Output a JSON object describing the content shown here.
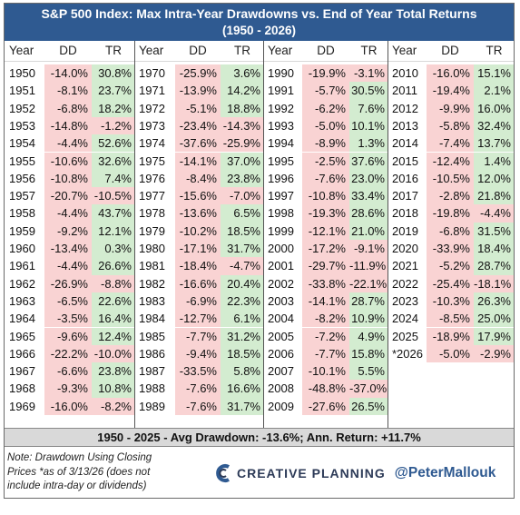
{
  "title_line1": "S&P 500 Index: Max Intra-Year Drawdowns vs. End of Year Total Returns",
  "title_line2": "(1950 - 2026)",
  "headers": {
    "year": "Year",
    "dd": "DD",
    "tr": "TR"
  },
  "summary": "1950 - 2025 - Avg Drawdown: -13.6%; Ann. Return: +11.7%",
  "note_line1": "Note: Drawdown Using Closing",
  "note_line2": "Prices *as of 3/13/26 (does not",
  "note_line3": "include intra-day or dividends)",
  "brand_name": "CREATIVE PLANNING",
  "brand_handle": "@PeterMallouk",
  "colors": {
    "title_bg": "#2f5a91",
    "negative_bg": "#f9d3d3",
    "positive_bg": "#d3ecd0",
    "summary_bg": "#d9d9d9"
  },
  "chart_data": {
    "type": "table",
    "columns": [
      "Year",
      "DD",
      "TR"
    ],
    "rows": [
      [
        "1950",
        "-14.0%",
        "30.8%"
      ],
      [
        "1951",
        "-8.1%",
        "23.7%"
      ],
      [
        "1952",
        "-6.8%",
        "18.2%"
      ],
      [
        "1953",
        "-14.8%",
        "-1.2%"
      ],
      [
        "1954",
        "-4.4%",
        "52.6%"
      ],
      [
        "1955",
        "-10.6%",
        "32.6%"
      ],
      [
        "1956",
        "-10.8%",
        "7.4%"
      ],
      [
        "1957",
        "-20.7%",
        "-10.5%"
      ],
      [
        "1958",
        "-4.4%",
        "43.7%"
      ],
      [
        "1959",
        "-9.2%",
        "12.1%"
      ],
      [
        "1960",
        "-13.4%",
        "0.3%"
      ],
      [
        "1961",
        "-4.4%",
        "26.6%"
      ],
      [
        "1962",
        "-26.9%",
        "-8.8%"
      ],
      [
        "1963",
        "-6.5%",
        "22.6%"
      ],
      [
        "1964",
        "-3.5%",
        "16.4%"
      ],
      [
        "1965",
        "-9.6%",
        "12.4%"
      ],
      [
        "1966",
        "-22.2%",
        "-10.0%"
      ],
      [
        "1967",
        "-6.6%",
        "23.8%"
      ],
      [
        "1968",
        "-9.3%",
        "10.8%"
      ],
      [
        "1969",
        "-16.0%",
        "-8.2%"
      ],
      [
        "1970",
        "-25.9%",
        "3.6%"
      ],
      [
        "1971",
        "-13.9%",
        "14.2%"
      ],
      [
        "1972",
        "-5.1%",
        "18.8%"
      ],
      [
        "1973",
        "-23.4%",
        "-14.3%"
      ],
      [
        "1974",
        "-37.6%",
        "-25.9%"
      ],
      [
        "1975",
        "-14.1%",
        "37.0%"
      ],
      [
        "1976",
        "-8.4%",
        "23.8%"
      ],
      [
        "1977",
        "-15.6%",
        "-7.0%"
      ],
      [
        "1978",
        "-13.6%",
        "6.5%"
      ],
      [
        "1979",
        "-10.2%",
        "18.5%"
      ],
      [
        "1980",
        "-17.1%",
        "31.7%"
      ],
      [
        "1981",
        "-18.4%",
        "-4.7%"
      ],
      [
        "1982",
        "-16.6%",
        "20.4%"
      ],
      [
        "1983",
        "-6.9%",
        "22.3%"
      ],
      [
        "1984",
        "-12.7%",
        "6.1%"
      ],
      [
        "1985",
        "-7.7%",
        "31.2%"
      ],
      [
        "1986",
        "-9.4%",
        "18.5%"
      ],
      [
        "1987",
        "-33.5%",
        "5.8%"
      ],
      [
        "1988",
        "-7.6%",
        "16.6%"
      ],
      [
        "1989",
        "-7.6%",
        "31.7%"
      ],
      [
        "1990",
        "-19.9%",
        "-3.1%"
      ],
      [
        "1991",
        "-5.7%",
        "30.5%"
      ],
      [
        "1992",
        "-6.2%",
        "7.6%"
      ],
      [
        "1993",
        "-5.0%",
        "10.1%"
      ],
      [
        "1994",
        "-8.9%",
        "1.3%"
      ],
      [
        "1995",
        "-2.5%",
        "37.6%"
      ],
      [
        "1996",
        "-7.6%",
        "23.0%"
      ],
      [
        "1997",
        "-10.8%",
        "33.4%"
      ],
      [
        "1998",
        "-19.3%",
        "28.6%"
      ],
      [
        "1999",
        "-12.1%",
        "21.0%"
      ],
      [
        "2000",
        "-17.2%",
        "-9.1%"
      ],
      [
        "2001",
        "-29.7%",
        "-11.9%"
      ],
      [
        "2002",
        "-33.8%",
        "-22.1%"
      ],
      [
        "2003",
        "-14.1%",
        "28.7%"
      ],
      [
        "2004",
        "-8.2%",
        "10.9%"
      ],
      [
        "2005",
        "-7.2%",
        "4.9%"
      ],
      [
        "2006",
        "-7.7%",
        "15.8%"
      ],
      [
        "2007",
        "-10.1%",
        "5.5%"
      ],
      [
        "2008",
        "-48.8%",
        "-37.0%"
      ],
      [
        "2009",
        "-27.6%",
        "26.5%"
      ],
      [
        "2010",
        "-16.0%",
        "15.1%"
      ],
      [
        "2011",
        "-19.4%",
        "2.1%"
      ],
      [
        "2012",
        "-9.9%",
        "16.0%"
      ],
      [
        "2013",
        "-5.8%",
        "32.4%"
      ],
      [
        "2014",
        "-7.4%",
        "13.7%"
      ],
      [
        "2015",
        "-12.4%",
        "1.4%"
      ],
      [
        "2016",
        "-10.5%",
        "12.0%"
      ],
      [
        "2017",
        "-2.8%",
        "21.8%"
      ],
      [
        "2018",
        "-19.8%",
        "-4.4%"
      ],
      [
        "2019",
        "-6.8%",
        "31.5%"
      ],
      [
        "2020",
        "-33.9%",
        "18.4%"
      ],
      [
        "2021",
        "-5.2%",
        "28.7%"
      ],
      [
        "2022",
        "-25.4%",
        "-18.1%"
      ],
      [
        "2023",
        "-10.3%",
        "26.3%"
      ],
      [
        "2024",
        "-8.5%",
        "25.0%"
      ],
      [
        "2025",
        "-18.9%",
        "17.9%"
      ],
      [
        "*2026",
        "-5.0%",
        "-2.9%"
      ]
    ]
  }
}
